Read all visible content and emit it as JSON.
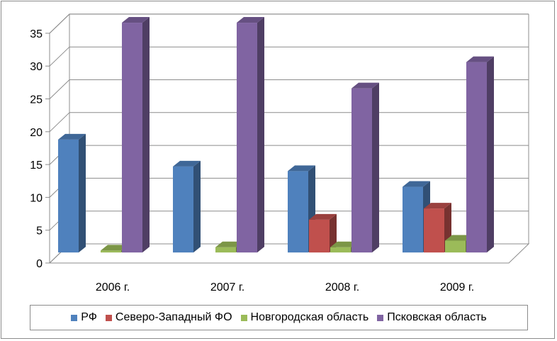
{
  "chart_data": {
    "type": "bar",
    "categories": [
      "2006 г.",
      "2007 г.",
      "2008 г.",
      "2009 г."
    ],
    "series": [
      {
        "name": "РФ",
        "values": [
          17.2,
          13.1,
          12.4,
          10.0
        ],
        "color": "#4f81bd"
      },
      {
        "name": "Северо-Западный ФО",
        "values": [
          0,
          0,
          5.0,
          6.7
        ],
        "color": "#c0504d"
      },
      {
        "name": "Новгородская область",
        "values": [
          0.3,
          0.8,
          0.8,
          1.8
        ],
        "color": "#9bbb59"
      },
      {
        "name": "Псковская область",
        "values": [
          35.0,
          35.0,
          25.0,
          29.0
        ],
        "color": "#8064a2"
      }
    ],
    "yticks": [
      0,
      5,
      10,
      15,
      20,
      25,
      30,
      35
    ],
    "ylim": [
      0,
      35
    ],
    "grid": true,
    "legend_position": "bottom"
  }
}
